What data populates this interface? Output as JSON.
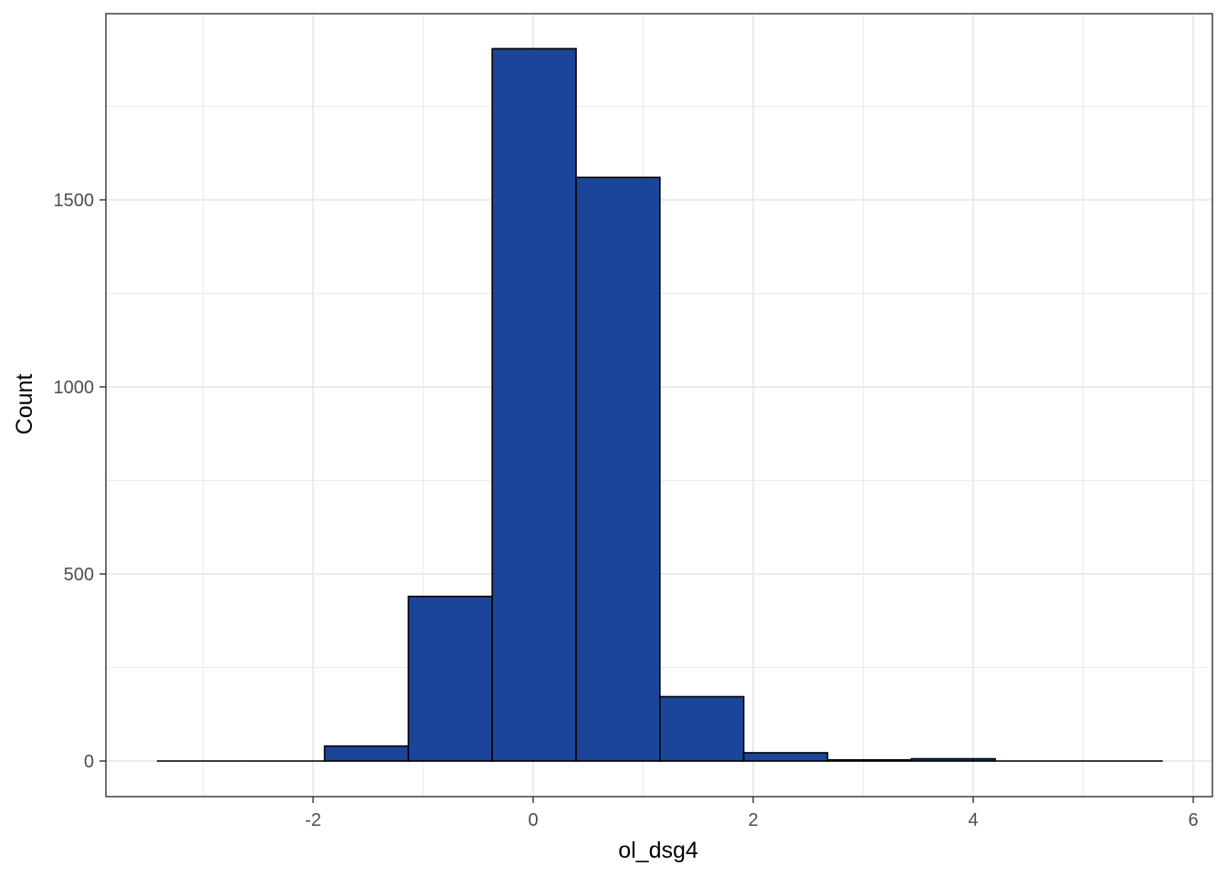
{
  "chart_data": {
    "type": "bar",
    "subtype": "histogram",
    "title": "",
    "xlabel": "ol_dsg4",
    "ylabel": "Count",
    "xlim": [
      -3.42,
      5.72
    ],
    "ylim": [
      0,
      1904
    ],
    "x_ticks": [
      -2,
      0,
      2,
      4,
      6
    ],
    "y_ticks": [
      0,
      500,
      1000,
      1500
    ],
    "grid": true,
    "bin_width": 0.762,
    "bins": [
      {
        "x0": -3.42,
        "x1": -2.658,
        "count": 0
      },
      {
        "x0": -2.658,
        "x1": -1.896,
        "count": 0
      },
      {
        "x0": -1.896,
        "x1": -1.134,
        "count": 40
      },
      {
        "x0": -1.134,
        "x1": -0.372,
        "count": 440
      },
      {
        "x0": -0.372,
        "x1": 0.39,
        "count": 1904
      },
      {
        "x0": 0.39,
        "x1": 1.152,
        "count": 1560
      },
      {
        "x0": 1.152,
        "x1": 1.914,
        "count": 172
      },
      {
        "x0": 1.914,
        "x1": 2.676,
        "count": 22
      },
      {
        "x0": 2.676,
        "x1": 3.438,
        "count": 3
      },
      {
        "x0": 3.438,
        "x1": 4.2,
        "count": 6
      },
      {
        "x0": 4.2,
        "x1": 4.962,
        "count": 0
      },
      {
        "x0": 4.962,
        "x1": 5.724,
        "count": 0
      }
    ],
    "colors": {
      "fill": "#1a4599",
      "stroke": "#000000",
      "grid": "#ebebeb",
      "panel_border": "#333333",
      "tick_text": "#4d4d4d"
    }
  }
}
